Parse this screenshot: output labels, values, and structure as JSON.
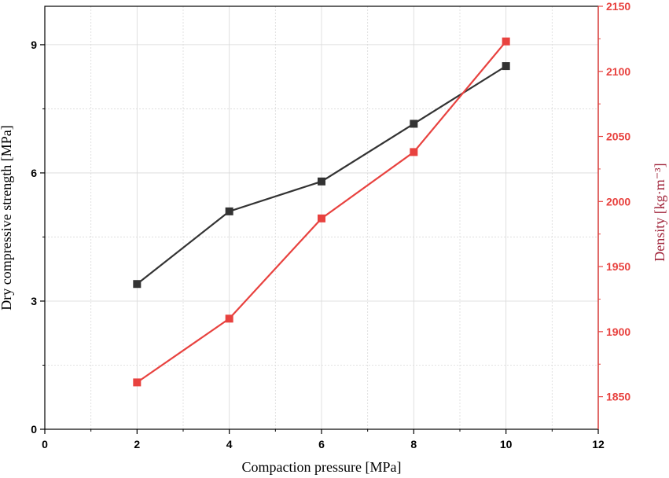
{
  "chart_data": {
    "type": "line",
    "xlabel": "Compaction pressure [MPa]",
    "ylabel_left": "Dry compressive strength [MPa]",
    "ylabel_right": "Density [kg·m⁻³]",
    "xlim": [
      0,
      12
    ],
    "ylim_left": [
      0,
      9.9
    ],
    "ylim_right": [
      1825,
      2150
    ],
    "x_ticks": [
      "0",
      "2",
      "4",
      "6",
      "8",
      "10",
      "12"
    ],
    "y_left_ticks": [
      "0",
      "3",
      "6",
      "9"
    ],
    "y_right_ticks": [
      "1850",
      "1900",
      "1950",
      "2000",
      "2050",
      "2100",
      "2150"
    ],
    "grid": true,
    "x": [
      2,
      4,
      6,
      8,
      10
    ],
    "series": [
      {
        "axis": "left",
        "color": "#333333",
        "values": [
          3.4,
          5.1,
          5.8,
          7.15,
          8.5
        ]
      },
      {
        "axis": "right",
        "color": "#e8423f",
        "values": [
          1861,
          1910,
          1987,
          2038,
          2123
        ]
      }
    ]
  },
  "colors": {
    "left_axis": "#000000",
    "right_axis": "#e8423f",
    "right_label": "#a0243a"
  }
}
